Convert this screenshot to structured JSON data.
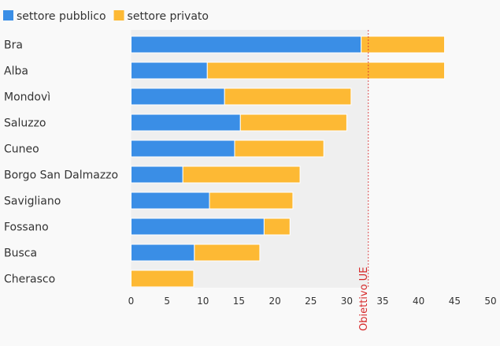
{
  "chart_data": {
    "type": "bar",
    "orientation": "horizontal",
    "stacked": true,
    "categories": [
      "Bra",
      "Alba",
      "Mondovì",
      "Saluzzo",
      "Cuneo",
      "Borgo San Dalmazzo",
      "Savigliano",
      "Fossano",
      "Busca",
      "Cherasco"
    ],
    "series": [
      {
        "name": "settore pubblico",
        "color": "#3a8ee6",
        "values": [
          32.0,
          10.6,
          13.0,
          15.2,
          14.4,
          7.2,
          10.9,
          18.5,
          8.8,
          0
        ]
      },
      {
        "name": "settore privato",
        "color": "#fdb934",
        "values": [
          11.6,
          33.0,
          17.6,
          14.8,
          12.4,
          16.3,
          11.6,
          3.6,
          9.1,
          8.7
        ]
      }
    ],
    "xlim": [
      0,
      50
    ],
    "xticks": [
      0,
      5,
      10,
      15,
      20,
      25,
      30,
      35,
      40,
      45,
      50
    ],
    "reference_line": {
      "label": "Obiettivo UE",
      "value": 33,
      "color": "#d62728"
    },
    "legend_position": "top-left",
    "grid": false
  }
}
